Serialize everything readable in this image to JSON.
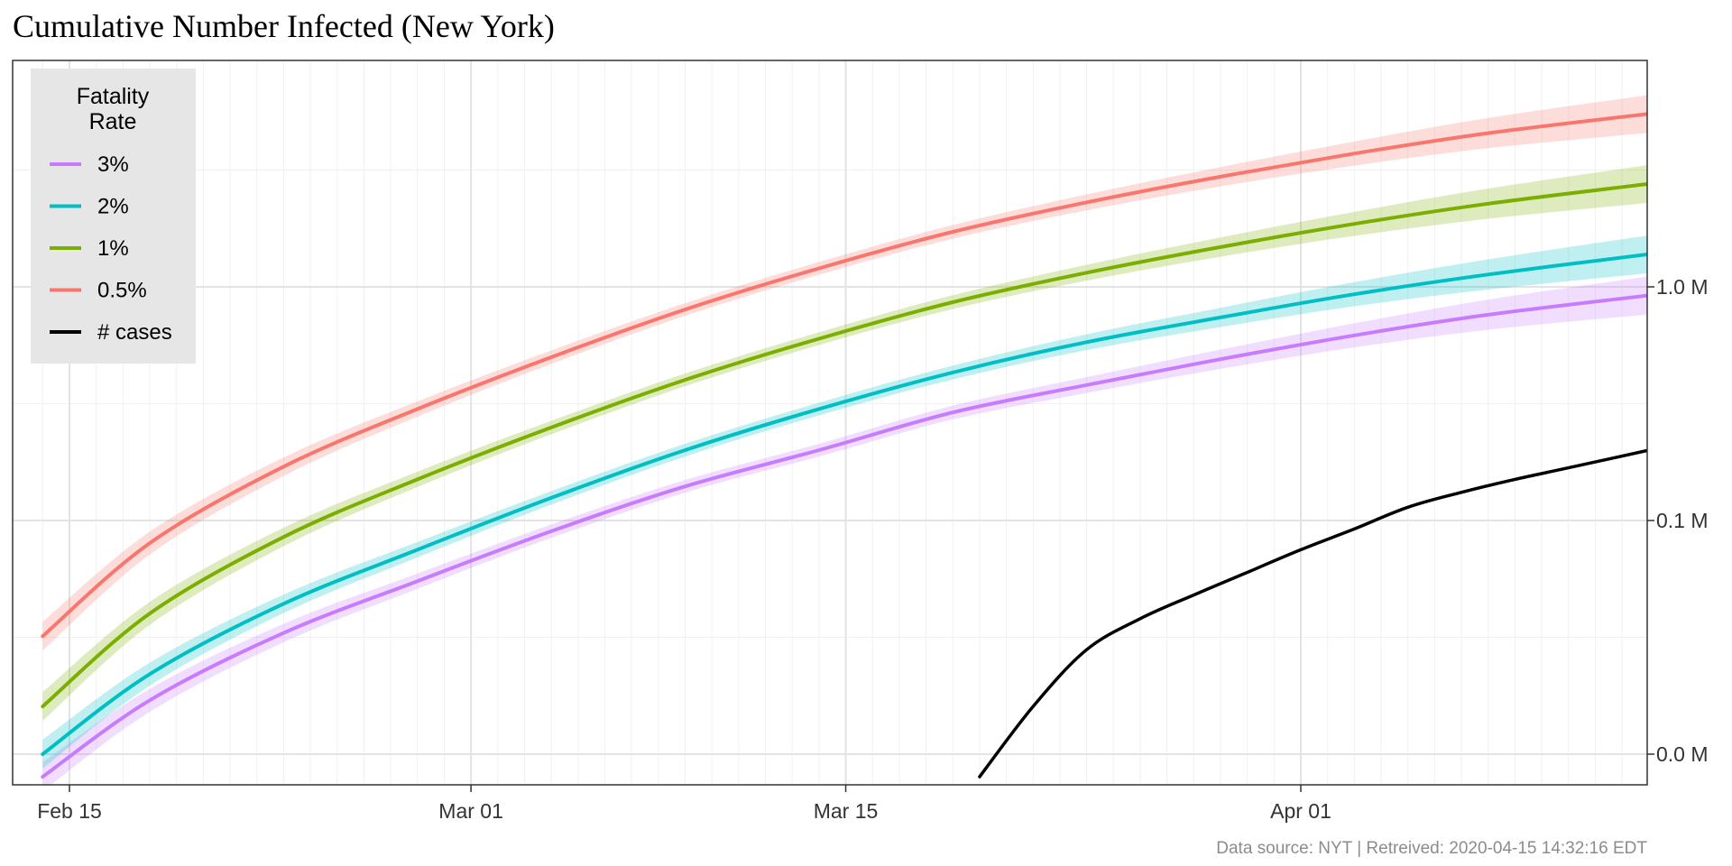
{
  "chart_data": {
    "type": "line",
    "title": "Cumulative Number Infected (New York)",
    "xlabel": "",
    "ylabel": "",
    "y_scale": "log10",
    "x_ticks": [
      "Feb 15",
      "Mar 01",
      "Mar 15",
      "Apr 01"
    ],
    "y_ticks": [
      "0.0 M",
      "0.1 M",
      "1.0 M"
    ],
    "grid": true,
    "legend": {
      "title": "Fatality\nRate",
      "title_lines": [
        "Fatality",
        "Rate"
      ],
      "position": "top-left",
      "entries": [
        "3%",
        "2%",
        "1%",
        "0.5%",
        "# cases"
      ]
    },
    "caption": "Data source: NYT  |  Retreived: 2020-04-15 14:32:16 EDT",
    "series": [
      {
        "name": "3%",
        "color": "#C77CFF",
        "x": [
          "Feb 14",
          "Feb 18",
          "Feb 23",
          "Feb 28",
          "Mar 04",
          "Mar 09",
          "Mar 14",
          "Mar 19",
          "Mar 24",
          "Mar 29",
          "Apr 03",
          "Apr 08",
          "Apr 14"
        ],
        "y": [
          8000,
          17000,
          33000,
          55000,
          90000,
          140000,
          200000,
          290000,
          380000,
          490000,
          620000,
          760000,
          920000
        ],
        "band": true
      },
      {
        "name": "2%",
        "color": "#00BFC4",
        "x": [
          "Feb 14",
          "Feb 18",
          "Feb 23",
          "Feb 28",
          "Mar 04",
          "Mar 09",
          "Mar 14",
          "Mar 19",
          "Mar 24",
          "Mar 29",
          "Apr 03",
          "Apr 08",
          "Apr 14"
        ],
        "y": [
          10000,
          22000,
          44000,
          75000,
          125000,
          200000,
          300000,
          430000,
          580000,
          740000,
          930000,
          1130000,
          1380000
        ],
        "band": true
      },
      {
        "name": "1%",
        "color": "#7CAE00",
        "x": [
          "Feb 14",
          "Feb 18",
          "Feb 23",
          "Feb 28",
          "Mar 04",
          "Mar 09",
          "Mar 14",
          "Mar 19",
          "Mar 24",
          "Mar 29",
          "Apr 03",
          "Apr 08",
          "Apr 14"
        ],
        "y": [
          16000,
          40000,
          85000,
          150000,
          250000,
          400000,
          600000,
          860000,
          1150000,
          1480000,
          1860000,
          2270000,
          2760000
        ],
        "band": true
      },
      {
        "name": "0.5%",
        "color": "#F8766D",
        "x": [
          "Feb 14",
          "Feb 18",
          "Feb 23",
          "Feb 28",
          "Mar 04",
          "Mar 09",
          "Mar 14",
          "Mar 19",
          "Mar 24",
          "Mar 29",
          "Apr 03",
          "Apr 08",
          "Apr 14"
        ],
        "y": [
          32000,
          80000,
          170000,
          300000,
          500000,
          800000,
          1200000,
          1720000,
          2300000,
          2960000,
          3720000,
          4550000,
          5500000
        ],
        "band": true
      },
      {
        "name": "# cases",
        "color": "#000000",
        "x": [
          "Mar 20",
          "Mar 22",
          "Mar 24",
          "Mar 26",
          "Mar 28",
          "Mar 30",
          "Apr 01",
          "Apr 03",
          "Apr 05",
          "Apr 07",
          "Apr 09",
          "Apr 11",
          "Apr 14"
        ],
        "y": [
          8000,
          16000,
          28000,
          38000,
          48000,
          60000,
          75000,
          92000,
          114000,
          132000,
          150000,
          168000,
          200000
        ],
        "band": false
      }
    ]
  }
}
